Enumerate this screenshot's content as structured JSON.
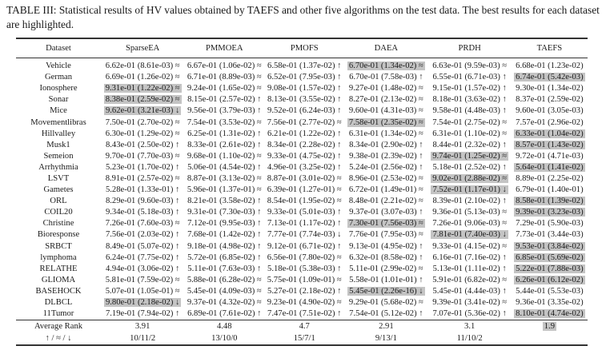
{
  "caption": "TABLE III: Statistical results of HV values obtained by TAEFS and other five algorithms on the test data. The best results for each dataset are highlighted.",
  "columns": [
    "Dataset",
    "SparseEA",
    "PMMOEA",
    "PMOFS",
    "DAEA",
    "PRDH",
    "TAEFS"
  ],
  "highlight_color": "#c4c4c4",
  "rows": [
    {
      "dataset": "Vehicle",
      "cells": [
        "6.62e-01 (8.61e-03) ≈",
        "6.67e-01 (1.06e-02) ≈",
        "6.58e-01 (1.37e-02) ↑",
        "6.70e-01 (1.34e-02) ≈",
        "6.63e-01 (9.59e-03) ≈",
        "6.68e-01 (1.23e-02)"
      ],
      "best": 3
    },
    {
      "dataset": "German",
      "cells": [
        "6.69e-01 (1.26e-02) ≈",
        "6.71e-01 (8.89e-03) ≈",
        "6.52e-01 (7.95e-03) ↑",
        "6.70e-01 (7.58e-03) ↑",
        "6.55e-01 (6.71e-03) ↑",
        "6.74e-01 (5.42e-03)"
      ],
      "best": 5
    },
    {
      "dataset": "Ionosphere",
      "cells": [
        "9.31e-01 (1.22e-02) ≈",
        "9.24e-01 (1.65e-02) ≈",
        "9.08e-01 (1.57e-02) ↑",
        "9.27e-01 (1.48e-02) ≈",
        "9.15e-01 (1.57e-02) ↑",
        "9.30e-01 (1.34e-02)"
      ],
      "best": 0
    },
    {
      "dataset": "Sonar",
      "cells": [
        "8.38e-01 (2.59e-02) ≈",
        "8.15e-01 (2.57e-02) ↑",
        "8.13e-01 (3.55e-02) ↑",
        "8.27e-01 (2.13e-02) ≈",
        "8.18e-01 (3.63e-02) ↑",
        "8.37e-01 (2.59e-02)"
      ],
      "best": 0
    },
    {
      "dataset": "Mice",
      "cells": [
        "9.62e-01 (3.21e-03) ↓",
        "9.56e-01 (3.79e-03) ↑",
        "9.52e-01 (6.24e-03) ↑",
        "9.60e-01 (4.31e-03) ≈",
        "9.58e-01 (4.48e-03) ↑",
        "9.60e-01 (3.05e-03)"
      ],
      "best": 0
    },
    {
      "dataset": "Movementlibras",
      "cells": [
        "7.50e-01 (2.70e-02) ≈",
        "7.54e-01 (3.53e-02) ≈",
        "7.56e-01 (2.77e-02) ≈",
        "7.58e-01 (2.35e-02) ≈",
        "7.54e-01 (2.75e-02) ≈",
        "7.57e-01 (2.96e-02)"
      ],
      "best": 3
    },
    {
      "dataset": "Hillvalley",
      "cells": [
        "6.30e-01 (1.29e-02) ≈",
        "6.25e-01 (1.31e-02) ↑",
        "6.21e-01 (1.22e-02) ↑",
        "6.31e-01 (1.34e-02) ≈",
        "6.31e-01 (1.10e-02) ≈",
        "6.33e-01 (1.04e-02)"
      ],
      "best": 5
    },
    {
      "dataset": "Musk1",
      "cells": [
        "8.43e-01 (2.50e-02) ↑",
        "8.33e-01 (2.61e-02) ↑",
        "8.34e-01 (2.28e-02) ↑",
        "8.34e-01 (2.90e-02) ↑",
        "8.44e-01 (2.32e-02) ↑",
        "8.57e-01 (1.43e-02)"
      ],
      "best": 5
    },
    {
      "dataset": "Semeion",
      "cells": [
        "9.70e-01 (7.70e-03) ≈",
        "9.68e-01 (1.10e-02) ≈",
        "9.33e-01 (4.75e-02) ↑",
        "9.38e-01 (2.39e-02) ↑",
        "9.74e-01 (1.25e-02) ≈",
        "9.72e-01 (4.71e-03)"
      ],
      "best": 4
    },
    {
      "dataset": "Arrhythmia",
      "cells": [
        "5.23e-01 (1.70e-02) ↑",
        "5.06e-01 (4.54e-02) ↑",
        "4.96e-01 (3.25e-02) ↑",
        "5.24e-01 (2.56e-02) ↑",
        "5.18e-01 (2.52e-02) ↑",
        "5.64e-01 (1.41e-02)"
      ],
      "best": 5
    },
    {
      "dataset": "LSVT",
      "cells": [
        "8.91e-01 (2.57e-02) ≈",
        "8.87e-01 (3.13e-02) ≈",
        "8.87e-01 (3.01e-02) ≈",
        "8.96e-01 (2.53e-02) ≈",
        "9.02e-01 (2.88e-02) ≈",
        "8.89e-01 (2.25e-02)"
      ],
      "best": 4
    },
    {
      "dataset": "Gametes",
      "cells": [
        "5.28e-01 (1.33e-01) ↑",
        "5.96e-01 (1.37e-01) ≈",
        "6.39e-01 (1.27e-01) ≈",
        "6.72e-01 (1.49e-01) ≈",
        "7.52e-01 (1.17e-01) ↓",
        "6.79e-01 (1.40e-01)"
      ],
      "best": 4
    },
    {
      "dataset": "ORL",
      "cells": [
        "8.29e-01 (9.60e-03) ↑",
        "8.21e-01 (3.58e-02) ↑",
        "8.54e-01 (1.95e-02) ≈",
        "8.48e-01 (2.21e-02) ≈",
        "8.39e-01 (2.10e-02) ↑",
        "8.58e-01 (1.39e-02)"
      ],
      "best": 5
    },
    {
      "dataset": "COIL20",
      "cells": [
        "9.34e-01 (5.18e-03) ↑",
        "9.31e-01 (7.30e-03) ↑",
        "9.33e-01 (5.01e-03) ↑",
        "9.37e-01 (3.07e-03) ↑",
        "9.36e-01 (5.13e-03) ≈",
        "9.39e-01 (3.23e-03)"
      ],
      "best": 5
    },
    {
      "dataset": "Christine",
      "cells": [
        "7.26e-01 (7.60e-03) ≈",
        "7.12e-01 (9.95e-03) ↑",
        "7.13e-01 (1.17e-02) ↑",
        "7.30e-01 (7.56e-03) ≈",
        "7.26e-01 (9.06e-03) ≈",
        "7.29e-01 (5.90e-03)"
      ],
      "best": 3
    },
    {
      "dataset": "Bioresponse",
      "cells": [
        "7.56e-01 (2.03e-02) ↑",
        "7.68e-01 (1.42e-02) ↑",
        "7.77e-01 (7.74e-03) ↓",
        "7.76e-01 (7.95e-03) ≈",
        "7.81e-01 (7.40e-03) ↓",
        "7.73e-01 (3.44e-03)"
      ],
      "best": 4
    },
    {
      "dataset": "SRBCT",
      "cells": [
        "8.49e-01 (5.07e-02) ↑",
        "9.18e-01 (4.98e-02) ↑",
        "9.12e-01 (6.71e-02) ↑",
        "9.13e-01 (4.95e-02) ↑",
        "9.33e-01 (4.15e-02) ≈",
        "9.53e-01 (3.84e-02)"
      ],
      "best": 5
    },
    {
      "dataset": "lymphoma",
      "cells": [
        "6.24e-01 (7.75e-02) ↑",
        "5.72e-01 (6.85e-02) ↑",
        "6.56e-01 (7.80e-02) ≈",
        "6.32e-01 (8.58e-02) ↑",
        "6.16e-01 (7.16e-02) ↑",
        "6.85e-01 (5.69e-02)"
      ],
      "best": 5
    },
    {
      "dataset": "RELATHE",
      "cells": [
        "4.94e-01 (3.06e-02) ↑",
        "5.11e-01 (7.63e-03) ↑",
        "5.18e-01 (5.38e-03) ↑",
        "5.11e-01 (2.99e-02) ≈",
        "5.13e-01 (1.11e-02) ↑",
        "5.22e-01 (7.88e-03)"
      ],
      "best": 5
    },
    {
      "dataset": "GLIOMA",
      "cells": [
        "5.81e-01 (7.59e-02) ≈",
        "5.88e-01 (6.28e-02) ≈",
        "5.75e-01 (1.09e-01) ≈",
        "5.58e-01 (1.01e-01) ↑",
        "5.91e-01 (6.82e-02) ≈",
        "6.26e-01 (6.12e-02)"
      ],
      "best": 5
    },
    {
      "dataset": "BASEHOCK",
      "cells": [
        "5.07e-01 (1.05e-01) ≈",
        "5.45e-01 (4.09e-03) ≈",
        "5.27e-01 (2.18e-02) ↑",
        "5.45e-01 (2.26e-16) ↓",
        "5.45e-01 (4.44e-03) ↑",
        "5.44e-01 (5.53e-03)"
      ],
      "best": 3
    },
    {
      "dataset": "DLBCL",
      "cells": [
        "9.80e-01 (2.18e-02) ↓",
        "9.37e-01 (4.32e-02) ≈",
        "9.23e-01 (4.90e-02) ≈",
        "9.29e-01 (5.68e-02) ≈",
        "9.39e-01 (3.41e-02) ≈",
        "9.36e-01 (3.35e-02)"
      ],
      "best": 0
    },
    {
      "dataset": "11Tumor",
      "cells": [
        "7.19e-01 (7.94e-02) ↑",
        "6.89e-01 (7.61e-02) ↑",
        "7.47e-01 (7.51e-02) ↑",
        "7.54e-01 (5.12e-02) ↑",
        "7.07e-01 (5.36e-02) ↑",
        "8.10e-01 (4.74e-02)"
      ],
      "best": 5
    }
  ],
  "summary": [
    {
      "label": "Average Rank",
      "cells": [
        "3.91",
        "4.48",
        "4.7",
        "2.91",
        "3.1",
        "1.9"
      ],
      "best": 5
    },
    {
      "label": "↑ / ≈ / ↓",
      "cells": [
        "10/11/2",
        "13/10/0",
        "15/7/1",
        "9/13/1",
        "11/10/2",
        ""
      ],
      "best": -1
    }
  ]
}
